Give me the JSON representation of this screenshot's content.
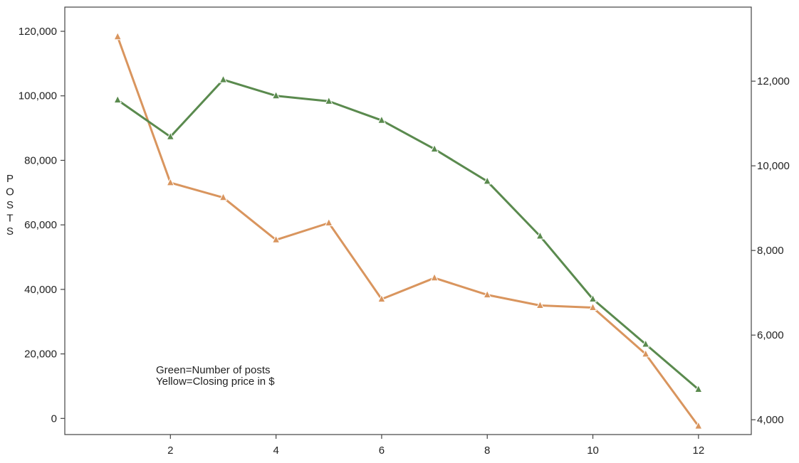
{
  "chart_data": {
    "type": "line",
    "ylabel": "POSTS",
    "x": [
      1,
      2,
      3,
      4,
      5,
      6,
      7,
      8,
      9,
      10,
      11,
      12
    ],
    "xlim": [
      0,
      13
    ],
    "x_ticks": [
      2,
      4,
      6,
      8,
      10,
      12
    ],
    "x_tick_labels": [
      "2",
      "4",
      "6",
      "8",
      "10",
      "12"
    ],
    "ylim": [
      -5000,
      127500
    ],
    "y_ticks": [
      0,
      20000,
      40000,
      60000,
      80000,
      100000,
      120000
    ],
    "y_tick_labels": [
      "0",
      "20,000",
      "40,000",
      "60,000",
      "80,000",
      "100,000",
      "120,000"
    ],
    "y2lim": [
      3650,
      13750
    ],
    "y2_ticks": [
      4000,
      6000,
      8000,
      10000,
      12000
    ],
    "y2_tick_labels": [
      "4,000",
      "6,000",
      "8,000",
      "10,000",
      "12,000"
    ],
    "grid": false,
    "legend_lines": [
      "Green=Number of posts",
      "Yellow=Closing price in $"
    ],
    "legend_position": "bottom-left",
    "series": [
      {
        "key": "posts",
        "axis": "left",
        "color": "#5a8a4e",
        "values": [
          98700,
          87300,
          105000,
          100000,
          98300,
          92400,
          83500,
          73500,
          56500,
          37000,
          23000,
          9000
        ]
      },
      {
        "key": "price",
        "axis": "right",
        "color": "#d9955e",
        "values": [
          13050,
          9600,
          9250,
          8250,
          8650,
          6850,
          7350,
          6950,
          6700,
          6650,
          5550,
          3850
        ]
      }
    ]
  }
}
